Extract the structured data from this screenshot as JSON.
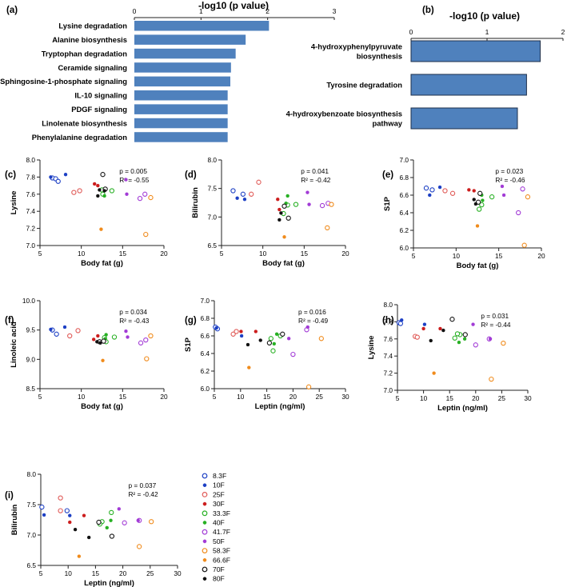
{
  "colors": {
    "bar": "#4f81bd",
    "bar_edge": "#3a6aa6"
  },
  "legend": {
    "entries": [
      {
        "label": "8.3F",
        "color": "#1c3fc4",
        "marker": "open"
      },
      {
        "label": "10F",
        "color": "#1c3fc4",
        "marker": "filled"
      },
      {
        "label": "25F",
        "color": "#e05a57",
        "marker": "open"
      },
      {
        "label": "30F",
        "color": "#cc1d1d",
        "marker": "filled"
      },
      {
        "label": "33.3F",
        "color": "#27b023",
        "marker": "open"
      },
      {
        "label": "40F",
        "color": "#27b023",
        "marker": "filled"
      },
      {
        "label": "41.7F",
        "color": "#a23bd6",
        "marker": "open"
      },
      {
        "label": "50F",
        "color": "#a23bd6",
        "marker": "filled"
      },
      {
        "label": "58.3F",
        "color": "#f08b1c",
        "marker": "open"
      },
      {
        "label": "66.6F",
        "color": "#f08b1c",
        "marker": "filled"
      },
      {
        "label": "70F",
        "color": "#111111",
        "marker": "open"
      },
      {
        "label": "80F",
        "color": "#111111",
        "marker": "filled"
      }
    ]
  },
  "chart_data": [
    {
      "id": "a",
      "panel_label": "(a)",
      "type": "bar",
      "orientation": "horizontal",
      "xlabel": "-log10 (p value)",
      "xlim": [
        0,
        3
      ],
      "xticks": [
        "0",
        "1",
        "2",
        "3"
      ],
      "categories": [
        "Lysine degradation",
        "Alanine biosynthesis",
        "Tryptophan degradation",
        "Ceramide signaling",
        "Sphingosine-1-phosphate signaling",
        "IL-10 signaling",
        "PDGF signaling",
        "Linolenate biosynthesis",
        "Phenylalanine degradation"
      ],
      "values": [
        2.02,
        1.67,
        1.52,
        1.45,
        1.44,
        1.4,
        1.4,
        1.4,
        1.4
      ]
    },
    {
      "id": "b",
      "panel_label": "(b)",
      "type": "bar",
      "orientation": "horizontal",
      "xlabel": "-log10 (p value)",
      "xlim": [
        0,
        2
      ],
      "xticks": [
        "0",
        "1",
        "2"
      ],
      "categories": [
        [
          "4-hydroxyphenylpyruvate",
          "biosynthesis"
        ],
        [
          "Tyrosine degradation"
        ],
        [
          "4-hydroxybenzoate biosynthesis",
          "pathway"
        ]
      ],
      "values": [
        1.7,
        1.52,
        1.4
      ]
    },
    {
      "id": "c",
      "panel_label": "(c)",
      "type": "scatter",
      "xlabel": "Body fat (g)",
      "ylabel": "Lysine",
      "xlim": [
        5,
        20
      ],
      "ylim": [
        7.0,
        8.0
      ],
      "xticks": [
        5,
        10,
        15,
        20
      ],
      "yticks": [
        7.0,
        7.2,
        7.4,
        7.6,
        7.8,
        8.0
      ],
      "ydec": 1,
      "stats": [
        "p = 0.005",
        "R² = -0.55"
      ],
      "points": [
        [
          6.5,
          7.79,
          0
        ],
        [
          6.9,
          7.78,
          0
        ],
        [
          7.2,
          7.75,
          0
        ],
        [
          8.1,
          7.83,
          1
        ],
        [
          6.3,
          7.8,
          1
        ],
        [
          9.1,
          7.62,
          2
        ],
        [
          9.8,
          7.64,
          2
        ],
        [
          11.6,
          7.72,
          3
        ],
        [
          12.0,
          7.7,
          3
        ],
        [
          12.5,
          7.65,
          4
        ],
        [
          12.6,
          7.6,
          4
        ],
        [
          12.9,
          7.65,
          5
        ],
        [
          12.8,
          7.58,
          5
        ],
        [
          13.7,
          7.64,
          4
        ],
        [
          17.1,
          7.55,
          6
        ],
        [
          17.7,
          7.6,
          6
        ],
        [
          15.4,
          7.77,
          7
        ],
        [
          15.5,
          7.6,
          7
        ],
        [
          18.4,
          7.56,
          8
        ],
        [
          17.8,
          7.13,
          8
        ],
        [
          12.4,
          7.19,
          9
        ],
        [
          12.6,
          7.83,
          10
        ],
        [
          12.9,
          7.66,
          10
        ],
        [
          12.0,
          7.58,
          11
        ],
        [
          12.2,
          7.65,
          11
        ],
        [
          12.8,
          7.64,
          11
        ]
      ]
    },
    {
      "id": "d",
      "panel_label": "(d)",
      "type": "scatter",
      "xlabel": "Body fat (g)",
      "ylabel": "Bilirubin",
      "xlim": [
        5,
        20
      ],
      "ylim": [
        6.5,
        8.0
      ],
      "xticks": [
        5,
        10,
        15,
        20
      ],
      "yticks": [
        6.5,
        7.0,
        7.5,
        8.0
      ],
      "ydec": 1,
      "stats": [
        "p = 0.041",
        "R² = -0.42"
      ],
      "points": [
        [
          6.4,
          7.46,
          0
        ],
        [
          7.6,
          7.4,
          0
        ],
        [
          6.9,
          7.33,
          1
        ],
        [
          7.8,
          7.31,
          1
        ],
        [
          8.6,
          7.4,
          2
        ],
        [
          9.5,
          7.61,
          2
        ],
        [
          11.8,
          7.31,
          3
        ],
        [
          12.0,
          7.13,
          3
        ],
        [
          13.0,
          7.21,
          4
        ],
        [
          12.5,
          7.06,
          4
        ],
        [
          14.0,
          7.22,
          4
        ],
        [
          13.0,
          7.37,
          5
        ],
        [
          12.8,
          7.24,
          5
        ],
        [
          17.2,
          7.2,
          6
        ],
        [
          17.9,
          7.24,
          6
        ],
        [
          15.4,
          7.43,
          7
        ],
        [
          15.6,
          7.22,
          7
        ],
        [
          18.3,
          7.22,
          8
        ],
        [
          17.8,
          6.81,
          8
        ],
        [
          12.6,
          6.65,
          9
        ],
        [
          12.6,
          7.19,
          10
        ],
        [
          13.1,
          6.98,
          10
        ],
        [
          12.0,
          6.95,
          11
        ],
        [
          12.2,
          7.07,
          11
        ]
      ]
    },
    {
      "id": "e",
      "panel_label": "(e)",
      "type": "scatter",
      "xlabel": "Body fat (g)",
      "ylabel": "S1P",
      "xlim": [
        5,
        20
      ],
      "ylim": [
        6.0,
        7.0
      ],
      "xticks": [
        5,
        10,
        15,
        20
      ],
      "yticks": [
        6.0,
        6.2,
        6.4,
        6.6,
        6.8,
        7.0
      ],
      "ydec": 1,
      "stats": [
        "p = 0.023",
        "R² = -0.46"
      ],
      "points": [
        [
          6.5,
          6.68,
          0
        ],
        [
          7.2,
          6.66,
          0
        ],
        [
          6.9,
          6.6,
          1
        ],
        [
          8.1,
          6.69,
          1
        ],
        [
          8.7,
          6.65,
          2
        ],
        [
          9.6,
          6.62,
          2
        ],
        [
          11.5,
          6.66,
          3
        ],
        [
          12.1,
          6.65,
          3
        ],
        [
          13.0,
          6.49,
          4
        ],
        [
          12.7,
          6.44,
          4
        ],
        [
          14.2,
          6.58,
          4
        ],
        [
          13.1,
          6.54,
          5
        ],
        [
          13.0,
          6.6,
          5
        ],
        [
          17.3,
          6.4,
          6
        ],
        [
          17.8,
          6.67,
          6
        ],
        [
          15.4,
          6.7,
          7
        ],
        [
          15.6,
          6.6,
          7
        ],
        [
          18.4,
          6.58,
          8
        ],
        [
          18.0,
          6.03,
          8
        ],
        [
          12.5,
          6.25,
          9
        ],
        [
          12.8,
          6.62,
          10
        ],
        [
          12.6,
          6.52,
          10
        ],
        [
          12.1,
          6.55,
          11
        ],
        [
          12.3,
          6.5,
          11
        ]
      ]
    },
    {
      "id": "f",
      "panel_label": "(f)",
      "type": "scatter",
      "xlabel": "Body fat (g)",
      "ylabel": "Linoleic acid",
      "xlim": [
        5,
        20
      ],
      "ylim": [
        8.5,
        10.0
      ],
      "xticks": [
        5,
        10,
        15,
        20
      ],
      "yticks": [
        8.5,
        9.0,
        9.5,
        10.0
      ],
      "ydec": 1,
      "stats": [
        "p = 0.034",
        "R² = -0.43"
      ],
      "points": [
        [
          6.5,
          9.5,
          0
        ],
        [
          7.0,
          9.43,
          0
        ],
        [
          6.3,
          9.51,
          1
        ],
        [
          8.0,
          9.55,
          1
        ],
        [
          8.6,
          9.4,
          2
        ],
        [
          9.6,
          9.49,
          2
        ],
        [
          11.5,
          9.34,
          3
        ],
        [
          12.0,
          9.4,
          3
        ],
        [
          12.8,
          9.37,
          4
        ],
        [
          13.0,
          9.3,
          4
        ],
        [
          14.0,
          9.38,
          4
        ],
        [
          13.0,
          9.42,
          5
        ],
        [
          12.9,
          9.35,
          5
        ],
        [
          17.2,
          9.28,
          6
        ],
        [
          17.8,
          9.33,
          6
        ],
        [
          15.4,
          9.48,
          7
        ],
        [
          15.6,
          9.38,
          7
        ],
        [
          18.4,
          9.4,
          8
        ],
        [
          17.9,
          9.01,
          8
        ],
        [
          12.6,
          8.98,
          9
        ],
        [
          12.7,
          9.31,
          10
        ],
        [
          12.2,
          9.3,
          10
        ],
        [
          11.9,
          9.3,
          11
        ],
        [
          12.3,
          9.28,
          11
        ]
      ]
    },
    {
      "id": "g",
      "panel_label": "(g)",
      "type": "scatter",
      "xlabel": "Leptin (ng/ml)",
      "ylabel": "S1P",
      "xlim": [
        5,
        30
      ],
      "ylim": [
        6.0,
        7.0
      ],
      "xticks": [
        5,
        10,
        15,
        20,
        25,
        30
      ],
      "yticks": [
        6.0,
        6.2,
        6.4,
        6.6,
        6.8,
        7.0
      ],
      "ydec": 1,
      "stats": [
        "p = 0.016",
        "R² = -0.49"
      ],
      "points": [
        [
          5.2,
          6.7,
          0
        ],
        [
          5.6,
          6.68,
          0
        ],
        [
          5.4,
          6.69,
          1
        ],
        [
          10.2,
          6.6,
          1
        ],
        [
          8.6,
          6.62,
          2
        ],
        [
          9.2,
          6.65,
          2
        ],
        [
          10.1,
          6.65,
          3
        ],
        [
          12.9,
          6.65,
          3
        ],
        [
          15.8,
          6.57,
          4
        ],
        [
          16.2,
          6.43,
          4
        ],
        [
          17.6,
          6.6,
          4
        ],
        [
          16.4,
          6.51,
          5
        ],
        [
          16.9,
          6.62,
          5
        ],
        [
          20.0,
          6.39,
          6
        ],
        [
          22.6,
          6.67,
          6
        ],
        [
          22.8,
          6.7,
          7
        ],
        [
          19.2,
          6.57,
          7
        ],
        [
          25.4,
          6.57,
          8
        ],
        [
          23.0,
          6.02,
          8
        ],
        [
          11.6,
          6.24,
          9
        ],
        [
          15.5,
          6.52,
          10
        ],
        [
          18.0,
          6.62,
          10
        ],
        [
          11.4,
          6.5,
          11
        ],
        [
          13.8,
          6.55,
          11
        ]
      ]
    },
    {
      "id": "h",
      "panel_label": "(h)",
      "type": "scatter",
      "xlabel": "Leptin (ng/ml)",
      "ylabel": "Lysine",
      "xlim": [
        5,
        30
      ],
      "ylim": [
        7.0,
        8.0
      ],
      "xticks": [
        5,
        10,
        15,
        20,
        25,
        30
      ],
      "yticks": [
        7.0,
        7.2,
        7.4,
        7.6,
        7.8,
        8.0
      ],
      "ydec": 1,
      "stats": [
        "p = 0.031",
        "R² = -0.44"
      ],
      "points": [
        [
          5.3,
          7.79,
          0
        ],
        [
          5.6,
          7.78,
          0
        ],
        [
          5.8,
          7.82,
          1
        ],
        [
          10.2,
          7.77,
          1
        ],
        [
          8.4,
          7.63,
          2
        ],
        [
          8.8,
          7.62,
          2
        ],
        [
          10.0,
          7.72,
          3
        ],
        [
          13.2,
          7.72,
          3
        ],
        [
          16.0,
          7.61,
          4
        ],
        [
          17.0,
          7.65,
          4
        ],
        [
          16.5,
          7.66,
          4
        ],
        [
          16.8,
          7.56,
          5
        ],
        [
          17.9,
          7.6,
          5
        ],
        [
          22.6,
          7.6,
          6
        ],
        [
          20.0,
          7.53,
          6
        ],
        [
          22.8,
          7.6,
          7
        ],
        [
          19.5,
          7.77,
          7
        ],
        [
          25.3,
          7.55,
          8
        ],
        [
          23.0,
          7.13,
          8
        ],
        [
          12.0,
          7.2,
          9
        ],
        [
          15.5,
          7.83,
          10
        ],
        [
          18.0,
          7.65,
          10
        ],
        [
          11.4,
          7.58,
          11
        ],
        [
          13.8,
          7.7,
          11
        ]
      ]
    },
    {
      "id": "i",
      "panel_label": "(i)",
      "type": "scatter",
      "xlabel": "Leptin (ng/ml)",
      "ylabel": "Bilirubin",
      "xlim": [
        5,
        30
      ],
      "ylim": [
        6.5,
        8.0
      ],
      "xticks": [
        5,
        10,
        15,
        20,
        25,
        30
      ],
      "yticks": [
        6.5,
        7.0,
        7.5,
        8.0
      ],
      "ydec": 1,
      "stats": [
        "p = 0.037",
        "R² = -0.42"
      ],
      "points": [
        [
          5.2,
          7.46,
          0
        ],
        [
          9.8,
          7.4,
          0
        ],
        [
          5.6,
          7.33,
          1
        ],
        [
          10.3,
          7.32,
          1
        ],
        [
          8.6,
          7.4,
          2
        ],
        [
          8.6,
          7.61,
          2
        ],
        [
          10.3,
          7.21,
          3
        ],
        [
          12.9,
          7.32,
          3
        ],
        [
          16.2,
          7.22,
          4
        ],
        [
          15.8,
          7.18,
          4
        ],
        [
          17.9,
          7.37,
          4
        ],
        [
          17.1,
          7.12,
          5
        ],
        [
          17.8,
          7.24,
          5
        ],
        [
          20.3,
          7.2,
          6
        ],
        [
          23.0,
          7.24,
          6
        ],
        [
          22.8,
          7.24,
          7
        ],
        [
          19.3,
          7.43,
          7
        ],
        [
          25.2,
          7.22,
          8
        ],
        [
          23.0,
          6.81,
          8
        ],
        [
          12.0,
          6.65,
          9
        ],
        [
          18.0,
          6.98,
          10
        ],
        [
          15.6,
          7.21,
          10
        ],
        [
          11.3,
          7.09,
          11
        ],
        [
          13.8,
          6.96,
          11
        ]
      ]
    }
  ]
}
